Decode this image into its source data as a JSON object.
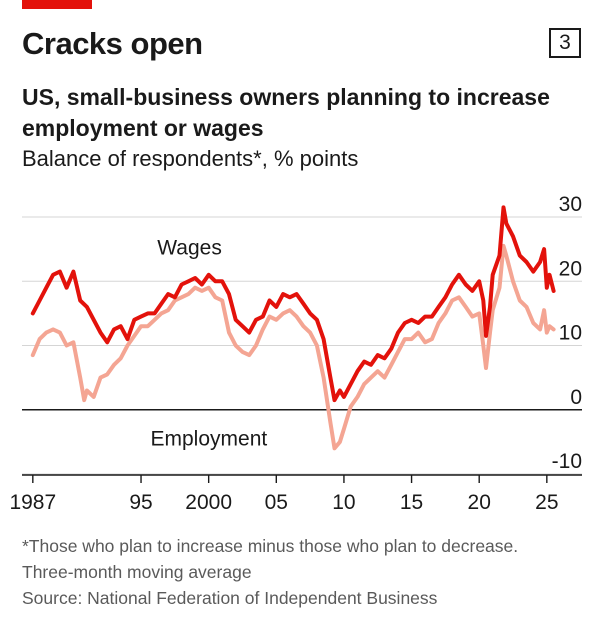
{
  "header": {
    "title": "Cracks open",
    "badge": "3",
    "subtitle": "US, small-business owners planning to increase employment or wages",
    "unit": "Balance of respondents*, % points"
  },
  "colors": {
    "brand": "#e3120b",
    "wages": "#e3120b",
    "employment": "#f4a593",
    "axis": "#1a1a1a",
    "grid": "#d5d5d5"
  },
  "footer": {
    "note1": "*Those who plan to increase minus those who plan to decrease.",
    "note2": "Three-month moving average",
    "source": "Source: National Federation of Independent Business"
  },
  "chart_data": {
    "type": "line",
    "xlim": [
      1986.2,
      2027.6
    ],
    "ylim": [
      -10,
      30
    ],
    "yticks": [
      30,
      20,
      10,
      0,
      -10
    ],
    "ytick_labels": [
      "30",
      "20",
      "10",
      "0",
      "-10"
    ],
    "xticks": [
      1987,
      1995,
      2000,
      2005,
      2010,
      2015,
      2020,
      2025
    ],
    "xtick_labels": [
      "1987",
      "95",
      "2000",
      "05",
      "10",
      "15",
      "20",
      "25"
    ],
    "grid": true,
    "series": [
      {
        "name": "Wages",
        "color_key": "wages",
        "points": [
          [
            1987.0,
            15
          ],
          [
            1987.5,
            17
          ],
          [
            1988.0,
            19
          ],
          [
            1988.5,
            21
          ],
          [
            1989.0,
            21.5
          ],
          [
            1989.5,
            19
          ],
          [
            1990.0,
            21.5
          ],
          [
            1990.5,
            17
          ],
          [
            1991.0,
            16
          ],
          [
            1991.5,
            14
          ],
          [
            1992.0,
            12
          ],
          [
            1992.5,
            10.5
          ],
          [
            1993.0,
            12.5
          ],
          [
            1993.5,
            13
          ],
          [
            1994.0,
            11
          ],
          [
            1994.5,
            14
          ],
          [
            1995.0,
            14.5
          ],
          [
            1995.5,
            15
          ],
          [
            1996.0,
            15
          ],
          [
            1996.5,
            16.5
          ],
          [
            1997.0,
            18
          ],
          [
            1997.5,
            17.5
          ],
          [
            1998.0,
            19.5
          ],
          [
            1998.5,
            20
          ],
          [
            1999.0,
            20.5
          ],
          [
            1999.5,
            19.5
          ],
          [
            2000.0,
            21
          ],
          [
            2000.5,
            20
          ],
          [
            2001.0,
            20
          ],
          [
            2001.5,
            18
          ],
          [
            2002.0,
            14
          ],
          [
            2002.5,
            13
          ],
          [
            2003.0,
            12
          ],
          [
            2003.5,
            14
          ],
          [
            2004.0,
            14.5
          ],
          [
            2004.5,
            17
          ],
          [
            2005.0,
            16
          ],
          [
            2005.5,
            18
          ],
          [
            2006.0,
            17.5
          ],
          [
            2006.5,
            18
          ],
          [
            2007.0,
            16.5
          ],
          [
            2007.5,
            15
          ],
          [
            2008.0,
            14
          ],
          [
            2008.5,
            11
          ],
          [
            2009.0,
            5
          ],
          [
            2009.3,
            1.5
          ],
          [
            2009.7,
            3
          ],
          [
            2010.0,
            2
          ],
          [
            2010.5,
            4
          ],
          [
            2011.0,
            6
          ],
          [
            2011.5,
            7.5
          ],
          [
            2012.0,
            7
          ],
          [
            2012.5,
            8.5
          ],
          [
            2013.0,
            8
          ],
          [
            2013.5,
            9.5
          ],
          [
            2014.0,
            12
          ],
          [
            2014.5,
            13.5
          ],
          [
            2015.0,
            14
          ],
          [
            2015.5,
            13.5
          ],
          [
            2016.0,
            14.5
          ],
          [
            2016.5,
            14.5
          ],
          [
            2017.0,
            16
          ],
          [
            2017.5,
            17.5
          ],
          [
            2018.0,
            19.5
          ],
          [
            2018.5,
            21
          ],
          [
            2019.0,
            19.5
          ],
          [
            2019.5,
            18.5
          ],
          [
            2020.0,
            20
          ],
          [
            2020.3,
            17
          ],
          [
            2020.5,
            11.5
          ],
          [
            2020.8,
            16
          ],
          [
            2021.0,
            21
          ],
          [
            2021.5,
            24
          ],
          [
            2021.8,
            31.5
          ],
          [
            2022.0,
            29
          ],
          [
            2022.5,
            27
          ],
          [
            2023.0,
            24
          ],
          [
            2023.5,
            23
          ],
          [
            2024.0,
            21.5
          ],
          [
            2024.5,
            23
          ],
          [
            2024.8,
            25
          ],
          [
            2025.0,
            19
          ],
          [
            2025.2,
            21
          ],
          [
            2025.5,
            18.5
          ]
        ]
      },
      {
        "name": "Employment",
        "color_key": "employment",
        "points": [
          [
            1987.0,
            8.5
          ],
          [
            1987.5,
            11
          ],
          [
            1988.0,
            12
          ],
          [
            1988.5,
            12.5
          ],
          [
            1989.0,
            12
          ],
          [
            1989.5,
            10
          ],
          [
            1990.0,
            10.5
          ],
          [
            1990.5,
            5
          ],
          [
            1990.8,
            1.5
          ],
          [
            1991.0,
            3
          ],
          [
            1991.5,
            2
          ],
          [
            1992.0,
            5
          ],
          [
            1992.5,
            5.5
          ],
          [
            1993.0,
            7
          ],
          [
            1993.5,
            8
          ],
          [
            1994.0,
            10
          ],
          [
            1994.5,
            11.5
          ],
          [
            1995.0,
            13
          ],
          [
            1995.5,
            13
          ],
          [
            1996.0,
            14
          ],
          [
            1996.5,
            15
          ],
          [
            1997.0,
            15.5
          ],
          [
            1997.5,
            17
          ],
          [
            1998.0,
            17.5
          ],
          [
            1998.5,
            18
          ],
          [
            1999.0,
            19
          ],
          [
            1999.5,
            18.5
          ],
          [
            2000.0,
            19
          ],
          [
            2000.5,
            17.5
          ],
          [
            2001.0,
            17
          ],
          [
            2001.5,
            12
          ],
          [
            2002.0,
            10
          ],
          [
            2002.5,
            9
          ],
          [
            2003.0,
            8.5
          ],
          [
            2003.5,
            10
          ],
          [
            2004.0,
            12.5
          ],
          [
            2004.5,
            14.5
          ],
          [
            2005.0,
            14
          ],
          [
            2005.5,
            15
          ],
          [
            2006.0,
            15.5
          ],
          [
            2006.5,
            14.5
          ],
          [
            2007.0,
            13
          ],
          [
            2007.5,
            12
          ],
          [
            2008.0,
            10
          ],
          [
            2008.5,
            5
          ],
          [
            2009.0,
            -2
          ],
          [
            2009.3,
            -6
          ],
          [
            2009.7,
            -5
          ],
          [
            2010.0,
            -3
          ],
          [
            2010.5,
            0.5
          ],
          [
            2011.0,
            2
          ],
          [
            2011.5,
            4
          ],
          [
            2012.0,
            5
          ],
          [
            2012.5,
            6
          ],
          [
            2013.0,
            5
          ],
          [
            2013.5,
            7
          ],
          [
            2014.0,
            9
          ],
          [
            2014.5,
            11
          ],
          [
            2015.0,
            11
          ],
          [
            2015.5,
            12
          ],
          [
            2016.0,
            10.5
          ],
          [
            2016.5,
            11
          ],
          [
            2017.0,
            13.5
          ],
          [
            2017.5,
            15
          ],
          [
            2018.0,
            17
          ],
          [
            2018.5,
            17.5
          ],
          [
            2019.0,
            16
          ],
          [
            2019.5,
            14.5
          ],
          [
            2020.0,
            15
          ],
          [
            2020.3,
            10
          ],
          [
            2020.5,
            6.5
          ],
          [
            2020.8,
            12
          ],
          [
            2021.0,
            15.5
          ],
          [
            2021.5,
            19
          ],
          [
            2021.8,
            25.5
          ],
          [
            2022.0,
            24
          ],
          [
            2022.5,
            20
          ],
          [
            2023.0,
            17
          ],
          [
            2023.5,
            16
          ],
          [
            2024.0,
            13.5
          ],
          [
            2024.5,
            12.5
          ],
          [
            2024.8,
            15.5
          ],
          [
            2025.0,
            12
          ],
          [
            2025.2,
            13
          ],
          [
            2025.5,
            12.5
          ]
        ]
      }
    ]
  }
}
